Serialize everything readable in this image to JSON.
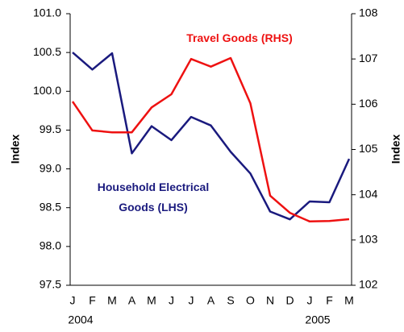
{
  "chart_data": {
    "type": "line",
    "categories": [
      "J",
      "F",
      "M",
      "A",
      "M",
      "J",
      "J",
      "A",
      "S",
      "O",
      "N",
      "D",
      "J",
      "F",
      "M"
    ],
    "years": [
      "2004",
      null,
      null,
      null,
      null,
      null,
      null,
      null,
      null,
      null,
      null,
      null,
      "2005",
      null,
      null
    ],
    "ylabel": "Index",
    "y2label": "Index",
    "ylim": [
      97.5,
      101.0
    ],
    "yticks": [
      {
        "value": 97.5,
        "label": "97.5"
      },
      {
        "value": 98,
        "label": "98.0"
      },
      {
        "value": 98.5,
        "label": "98.5"
      },
      {
        "value": 99,
        "label": "99.0"
      },
      {
        "value": 99.5,
        "label": "99.5"
      },
      {
        "value": 100,
        "label": "100.0"
      },
      {
        "value": 100.5,
        "label": "100.5"
      },
      {
        "value": 101,
        "label": "101.0"
      }
    ],
    "y2lim": [
      102,
      108
    ],
    "y2ticks": [
      102,
      103,
      104,
      105,
      106,
      107,
      108
    ],
    "grid": false,
    "series": [
      {
        "name": "Household Electrical Goods (LHS)",
        "color": "#1a1a7e",
        "axis": "y",
        "values": [
          100.5,
          100.28,
          100.49,
          99.2,
          99.55,
          99.37,
          99.67,
          99.56,
          99.22,
          98.94,
          98.45,
          98.35,
          98.58,
          98.57,
          99.13
        ]
      },
      {
        "name": "Travel Goods (RHS)",
        "color": "#ee1111",
        "axis": "y2",
        "values": [
          106.06,
          105.42,
          105.38,
          105.38,
          105.93,
          106.22,
          107.0,
          106.83,
          107.02,
          106.02,
          103.98,
          103.6,
          103.41,
          103.42,
          103.46
        ]
      }
    ]
  }
}
